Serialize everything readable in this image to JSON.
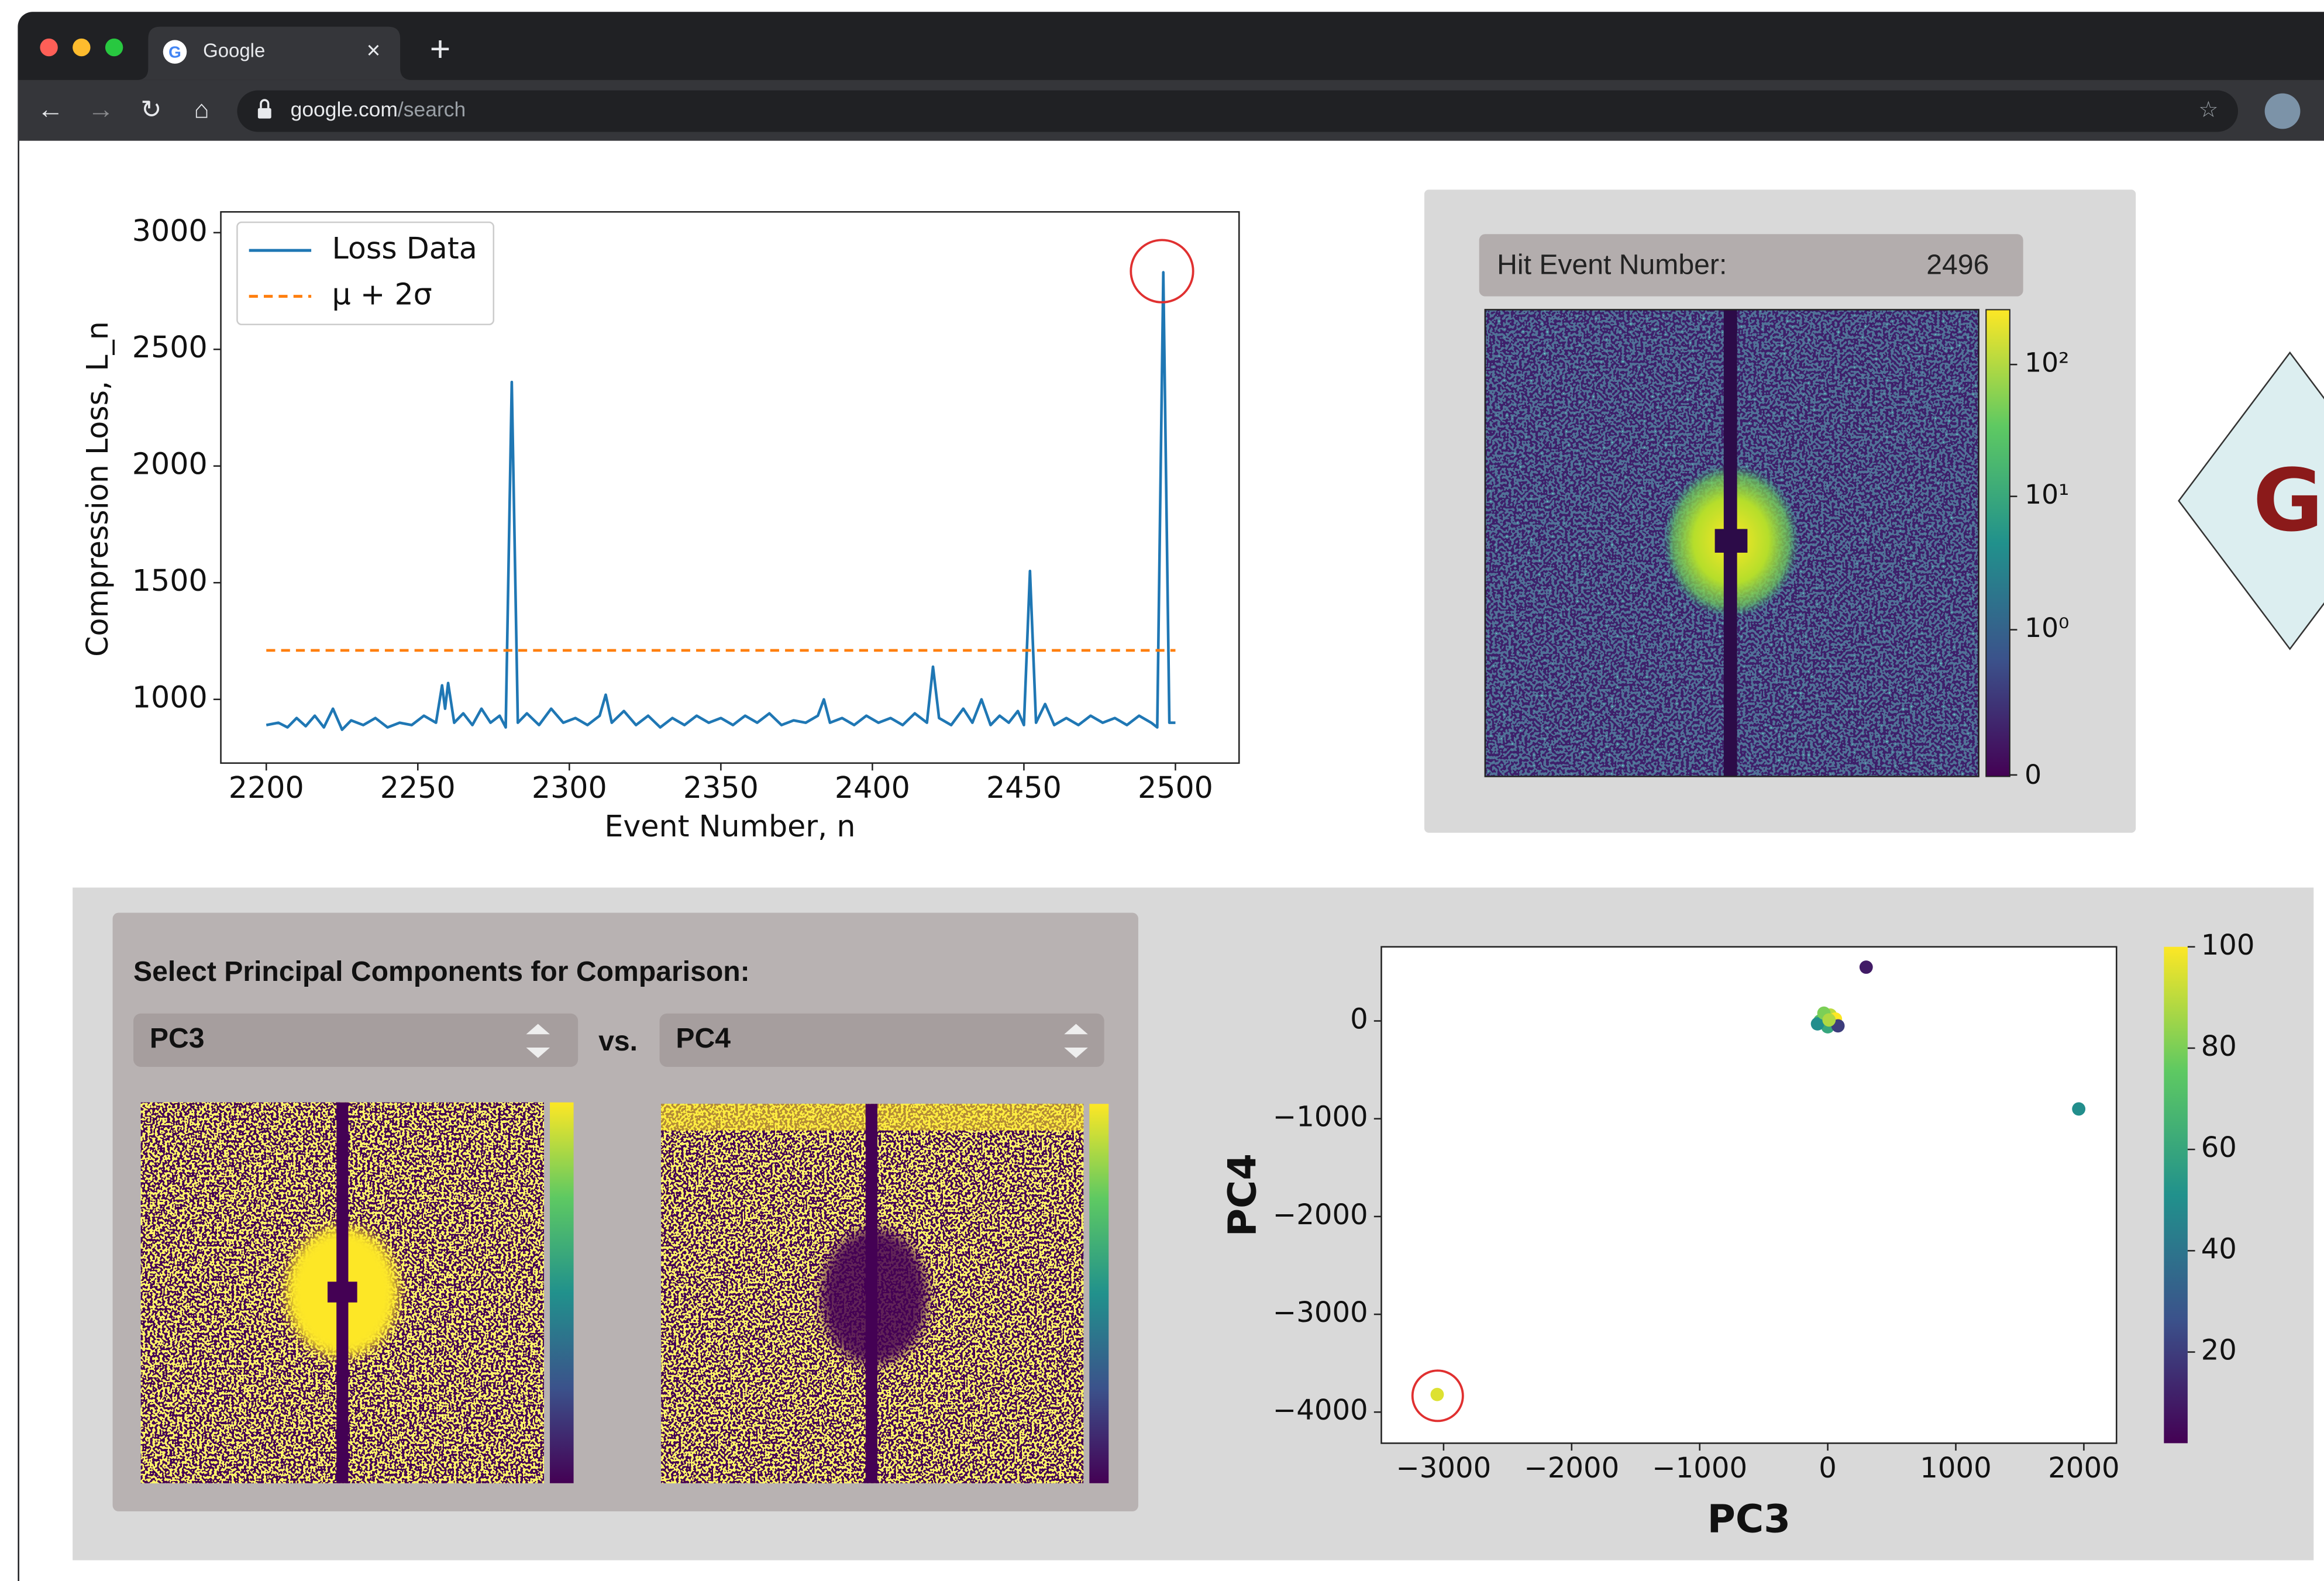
{
  "browser": {
    "tab_title": "Google",
    "url_host": "google.com",
    "url_path": "/search"
  },
  "chart_data": [
    {
      "type": "line",
      "xlabel": "Event Number, n",
      "ylabel": "Compression Loss, L_n",
      "x": [
        2200,
        2204,
        2207,
        2210,
        2213,
        2216,
        2219,
        2222,
        2225,
        2228,
        2232,
        2236,
        2240,
        2244,
        2248,
        2252,
        2256,
        2258,
        2259,
        2260,
        2262,
        2265,
        2268,
        2271,
        2274,
        2277,
        2279,
        2281,
        2283,
        2286,
        2290,
        2294,
        2298,
        2302,
        2306,
        2310,
        2312,
        2314,
        2318,
        2322,
        2326,
        2330,
        2334,
        2338,
        2342,
        2346,
        2350,
        2354,
        2358,
        2362,
        2366,
        2370,
        2374,
        2378,
        2382,
        2384,
        2386,
        2390,
        2394,
        2398,
        2402,
        2406,
        2410,
        2414,
        2418,
        2420,
        2422,
        2426,
        2430,
        2433,
        2436,
        2439,
        2442,
        2445,
        2448,
        2450,
        2452,
        2454,
        2457,
        2460,
        2464,
        2468,
        2472,
        2476,
        2480,
        2484,
        2488,
        2492,
        2494,
        2496,
        2498,
        2500
      ],
      "series": [
        {
          "name": "Loss Data",
          "color": "#1f77b4",
          "values": [
            890,
            900,
            880,
            920,
            885,
            930,
            880,
            960,
            870,
            910,
            890,
            920,
            880,
            900,
            890,
            930,
            900,
            1060,
            960,
            1070,
            900,
            940,
            890,
            960,
            900,
            930,
            880,
            2360,
            900,
            940,
            890,
            960,
            900,
            920,
            890,
            930,
            1020,
            900,
            950,
            890,
            930,
            880,
            920,
            890,
            930,
            900,
            920,
            890,
            930,
            900,
            940,
            890,
            910,
            900,
            930,
            1000,
            900,
            920,
            890,
            930,
            900,
            920,
            890,
            940,
            900,
            1140,
            920,
            890,
            960,
            900,
            1000,
            890,
            930,
            900,
            950,
            890,
            1550,
            900,
            980,
            890,
            920,
            890,
            930,
            900,
            920,
            890,
            930,
            900,
            880,
            2830,
            900,
            900
          ]
        },
        {
          "name": "μ + 2σ",
          "color": "#ff7f0e",
          "dashed": true,
          "x": [
            2200,
            2500
          ],
          "values": [
            1210,
            1210
          ]
        }
      ],
      "xlim": [
        2185,
        2521
      ],
      "xticks": [
        2200,
        2250,
        2300,
        2350,
        2400,
        2450,
        2500
      ],
      "ylim": [
        727,
        3089
      ],
      "yticks": [
        1000,
        1500,
        2000,
        2500,
        3000
      ],
      "legend": "upper left"
    },
    {
      "type": "scatter",
      "xlabel": "PC3",
      "ylabel": "PC4",
      "x": [
        -20,
        20,
        -60,
        40,
        0,
        -80,
        60,
        -30,
        80,
        10,
        300,
        1960,
        -3050
      ],
      "values": [
        30,
        60,
        0,
        -20,
        -60,
        -30,
        20,
        80,
        -50,
        10,
        550,
        -900,
        -3820
      ],
      "color_values": [
        95,
        90,
        70,
        85,
        60,
        50,
        100,
        80,
        20,
        88,
        10,
        50,
        95
      ],
      "colormap": "viridis",
      "colorbar": {
        "lim": [
          2,
          100
        ],
        "ticks": [
          20,
          40,
          60,
          80,
          100
        ]
      },
      "xlim": [
        -3486,
        2255
      ],
      "xticks": [
        {
          "value": -3000,
          "label": "−3000"
        },
        {
          "value": -2000,
          "label": "−2000"
        },
        {
          "value": -1000,
          "label": "−1000"
        },
        0,
        1000,
        2000
      ],
      "ylim": [
        -4318,
        758
      ],
      "yticks": [
        0,
        {
          "value": -1000,
          "label": "−1000"
        },
        {
          "value": -2000,
          "label": "−2000"
        },
        {
          "value": -3000,
          "label": "−3000"
        },
        {
          "value": -4000,
          "label": "−4000"
        }
      ]
    }
  ],
  "hit_panel": {
    "label": "Hit Event Number:",
    "event_number": 2496,
    "colorbar_labels": [
      "10²",
      "10¹",
      "10⁰",
      "0"
    ]
  },
  "pc_panel": {
    "title": "Select Principal Components for Comparison:",
    "left_select": "PC3",
    "separator": "vs.",
    "right_select": "PC4"
  },
  "side_badge": "G"
}
